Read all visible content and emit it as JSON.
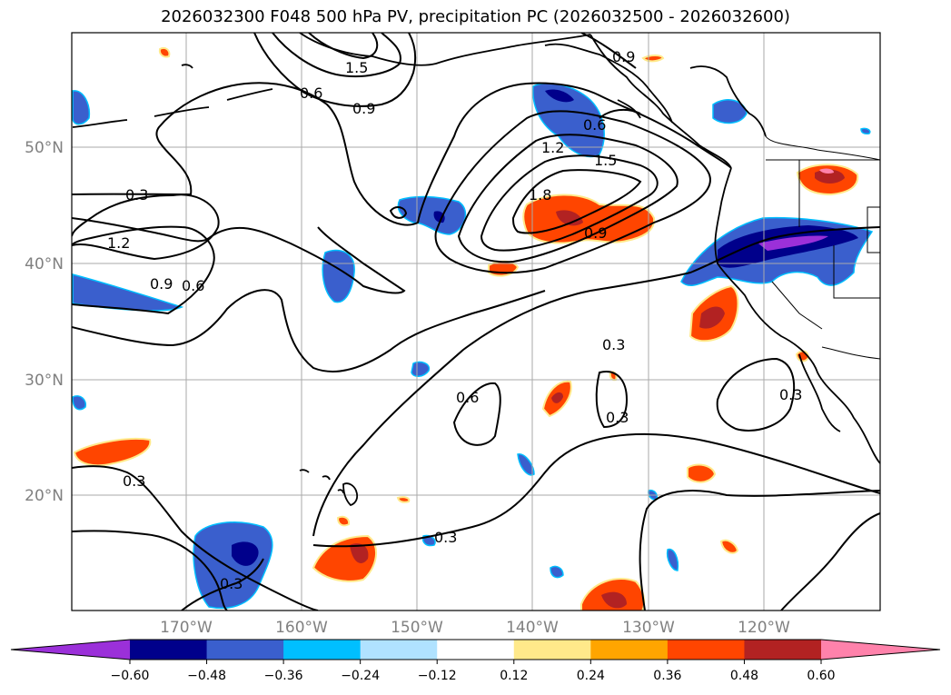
{
  "title": "2026032300 F048 500 hPa PV, precipitation PC (2026032500 - 2026032600)",
  "lat_labels": [
    "50°N",
    "40°N",
    "30°N",
    "20°N"
  ],
  "lon_labels": [
    "170°W",
    "160°W",
    "150°W",
    "140°W",
    "130°W",
    "120°W"
  ],
  "colorbar": {
    "ticks": [
      "−0.60",
      "−0.48",
      "−0.36",
      "−0.24",
      "−0.12",
      "0.12",
      "0.24",
      "0.36",
      "0.48",
      "0.60"
    ],
    "colors": [
      "#9b30d9",
      "#00008b",
      "#3a5fcd",
      "#00bfff",
      "#b0e2ff",
      "#ffffff",
      "#ffe98a",
      "#ffa500",
      "#ff4500",
      "#b22222",
      "#ff82ab"
    ]
  },
  "contour_labels": [
    "1.5",
    "0.9",
    "0.6",
    "0.9",
    "0.6",
    "0.3",
    "1.2",
    "0.9",
    "0.6",
    "1.2",
    "1.5",
    "1.8",
    "0.9",
    "0.3",
    "0.6",
    "0.3",
    "0.3",
    "0.3",
    "0.3",
    "0.3"
  ]
}
